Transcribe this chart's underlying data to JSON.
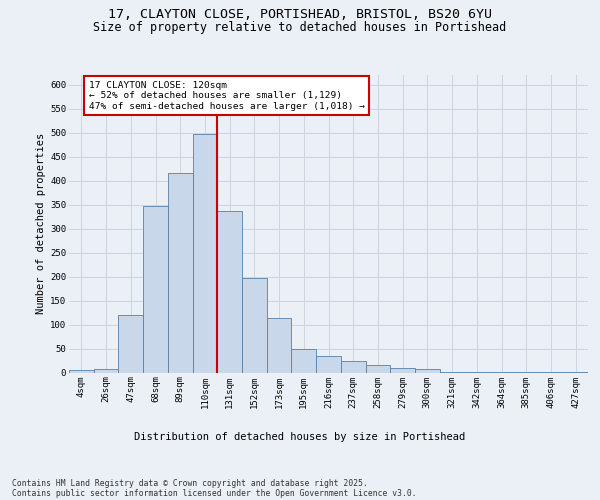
{
  "title_line1": "17, CLAYTON CLOSE, PORTISHEAD, BRISTOL, BS20 6YU",
  "title_line2": "Size of property relative to detached houses in Portishead",
  "xlabel": "Distribution of detached houses by size in Portishead",
  "ylabel": "Number of detached properties",
  "footer_line1": "Contains HM Land Registry data © Crown copyright and database right 2025.",
  "footer_line2": "Contains public sector information licensed under the Open Government Licence v3.0.",
  "bin_labels": [
    "4sqm",
    "26sqm",
    "47sqm",
    "68sqm",
    "89sqm",
    "110sqm",
    "131sqm",
    "152sqm",
    "173sqm",
    "195sqm",
    "216sqm",
    "237sqm",
    "258sqm",
    "279sqm",
    "300sqm",
    "321sqm",
    "342sqm",
    "364sqm",
    "385sqm",
    "406sqm",
    "427sqm"
  ],
  "bar_values": [
    5,
    7,
    120,
    348,
    416,
    497,
    337,
    196,
    113,
    50,
    35,
    24,
    16,
    10,
    7,
    2,
    1,
    1,
    1,
    1,
    1
  ],
  "bar_color": "#c8d8ea",
  "bar_edge_color": "#5580a8",
  "grid_color": "#cdd6df",
  "background_color": "#eaf0f6",
  "vline_bin_index": 5,
  "annotation_line1": "17 CLAYTON CLOSE: 120sqm",
  "annotation_line2": "← 52% of detached houses are smaller (1,129)",
  "annotation_line3": "47% of semi-detached houses are larger (1,018) →",
  "annotation_box_facecolor": "#ffffff",
  "annotation_box_edgecolor": "#cc0000",
  "vline_color": "#cc0000",
  "ylim_max": 620,
  "yticks": [
    0,
    50,
    100,
    150,
    200,
    250,
    300,
    350,
    400,
    450,
    500,
    550,
    600
  ],
  "title_fontsize": 9.5,
  "subtitle_fontsize": 8.5,
  "axis_label_fontsize": 7.5,
  "tick_fontsize": 6.5,
  "annotation_fontsize": 6.8,
  "footer_fontsize": 5.8
}
